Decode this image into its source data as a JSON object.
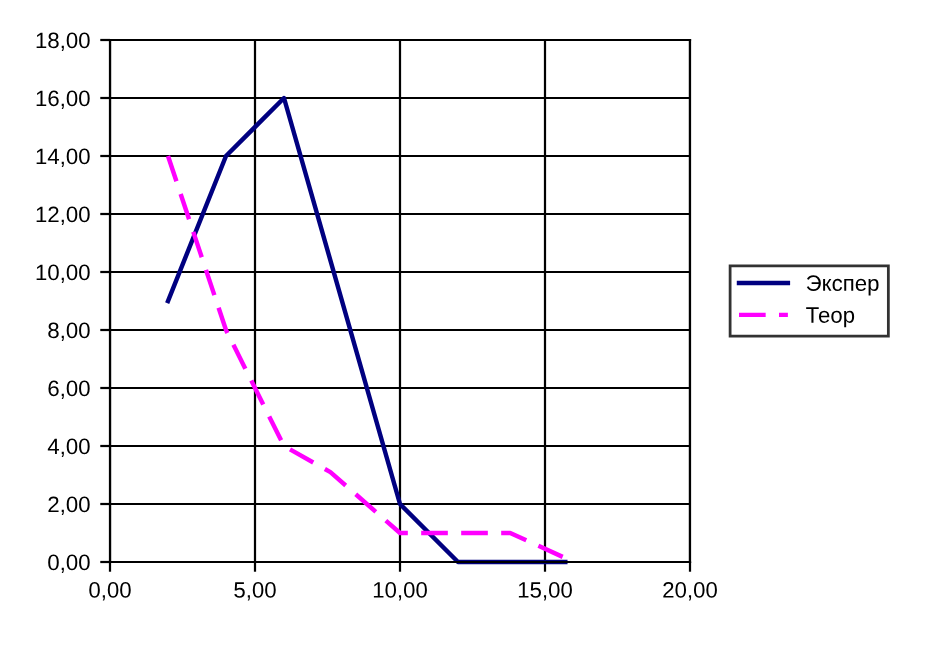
{
  "chart_data": {
    "type": "line",
    "xlim": [
      0,
      20
    ],
    "ylim": [
      0,
      18
    ],
    "xticks": [
      {
        "value": 0,
        "label": "0,00"
      },
      {
        "value": 5,
        "label": "5,00"
      },
      {
        "value": 10,
        "label": "10,00"
      },
      {
        "value": 15,
        "label": "15,00"
      },
      {
        "value": 20,
        "label": "20,00"
      }
    ],
    "yticks": [
      {
        "value": 0,
        "label": "0,00"
      },
      {
        "value": 2,
        "label": "2,00"
      },
      {
        "value": 4,
        "label": "4,00"
      },
      {
        "value": 6,
        "label": "6,00"
      },
      {
        "value": 8,
        "label": "8,00"
      },
      {
        "value": 10,
        "label": "10,00"
      },
      {
        "value": 12,
        "label": "12,00"
      },
      {
        "value": 14,
        "label": "14,00"
      },
      {
        "value": 16,
        "label": "16,00"
      },
      {
        "value": 18,
        "label": "18,00"
      }
    ],
    "grid": true,
    "legend": "right",
    "marker": "none",
    "series": [
      {
        "name": "Экспер",
        "color": "#000080",
        "line_style": "solid",
        "x": [
          2,
          4,
          6,
          10,
          12,
          15.7
        ],
        "values": [
          9,
          14,
          16,
          2,
          0,
          0
        ]
      },
      {
        "name": "Теор",
        "color": "#ff00ff",
        "line_style": "dashed",
        "x": [
          2,
          4,
          6,
          7.6,
          10,
          13.8,
          16
        ],
        "values": [
          14,
          8,
          4,
          3.1,
          1,
          1,
          0
        ]
      }
    ]
  }
}
